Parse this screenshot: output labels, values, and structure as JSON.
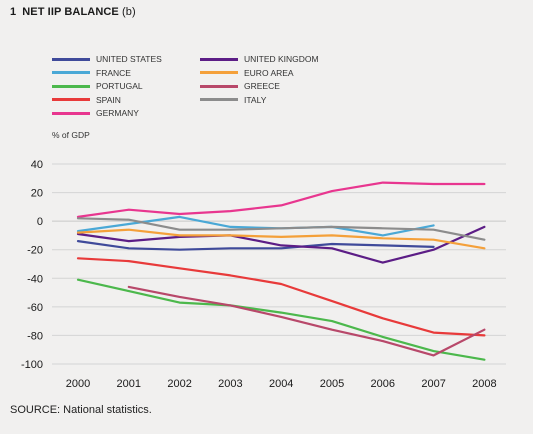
{
  "header": {
    "number": "1",
    "title": "NET IIP BALANCE",
    "suffix": "(b)"
  },
  "source": "SOURCE: National statistics.",
  "chart_data": {
    "type": "line",
    "title": "NET IIP BALANCE",
    "ylabel": "% of GDP",
    "xlabel": "",
    "x": [
      "2000",
      "2001",
      "2002",
      "2003",
      "2004",
      "2005",
      "2006",
      "2007",
      "2008"
    ],
    "ylim": [
      -100,
      40
    ],
    "yticks": [
      40,
      20,
      0,
      -20,
      -40,
      -60,
      -80,
      -100
    ],
    "grid": "horizontal",
    "legend_position": "top",
    "series": [
      {
        "name": "UNITED STATES",
        "color": "#3f4a9a",
        "values": [
          -14,
          -19,
          -20,
          -19,
          -19,
          -16,
          -17,
          -18,
          null
        ]
      },
      {
        "name": "FRANCE",
        "color": "#4aa8d6",
        "values": [
          -7,
          -2,
          3,
          -4,
          -5,
          -4,
          -10,
          -3,
          null
        ]
      },
      {
        "name": "PORTUGAL",
        "color": "#4cb84c",
        "values": [
          -41,
          -49,
          -57,
          -59,
          -64,
          -70,
          -81,
          -91,
          -97
        ]
      },
      {
        "name": "SPAIN",
        "color": "#e83a3a",
        "values": [
          -26,
          -28,
          -33,
          -38,
          -44,
          -56,
          -68,
          -78,
          -80
        ]
      },
      {
        "name": "GERMANY",
        "color": "#e8368f",
        "values": [
          3,
          8,
          5,
          7,
          11,
          21,
          27,
          26,
          26
        ]
      },
      {
        "name": "UNITED KINGDOM",
        "color": "#5c1d86",
        "values": [
          -9,
          -14,
          -11,
          -10,
          -17,
          -19,
          -29,
          -20,
          -4
        ]
      },
      {
        "name": "EURO AREA",
        "color": "#f4a03a",
        "values": [
          -8,
          -6,
          -10,
          -10,
          -11,
          -10,
          -12,
          -13,
          -19
        ]
      },
      {
        "name": "GREECE",
        "color": "#b8486a",
        "values": [
          null,
          -46,
          -53,
          -59,
          -67,
          -76,
          -84,
          -94,
          -76
        ]
      },
      {
        "name": "ITALY",
        "color": "#8c8c8c",
        "values": [
          2,
          1,
          -6,
          -6,
          -5,
          -4,
          -5,
          -6,
          -13
        ]
      }
    ]
  }
}
